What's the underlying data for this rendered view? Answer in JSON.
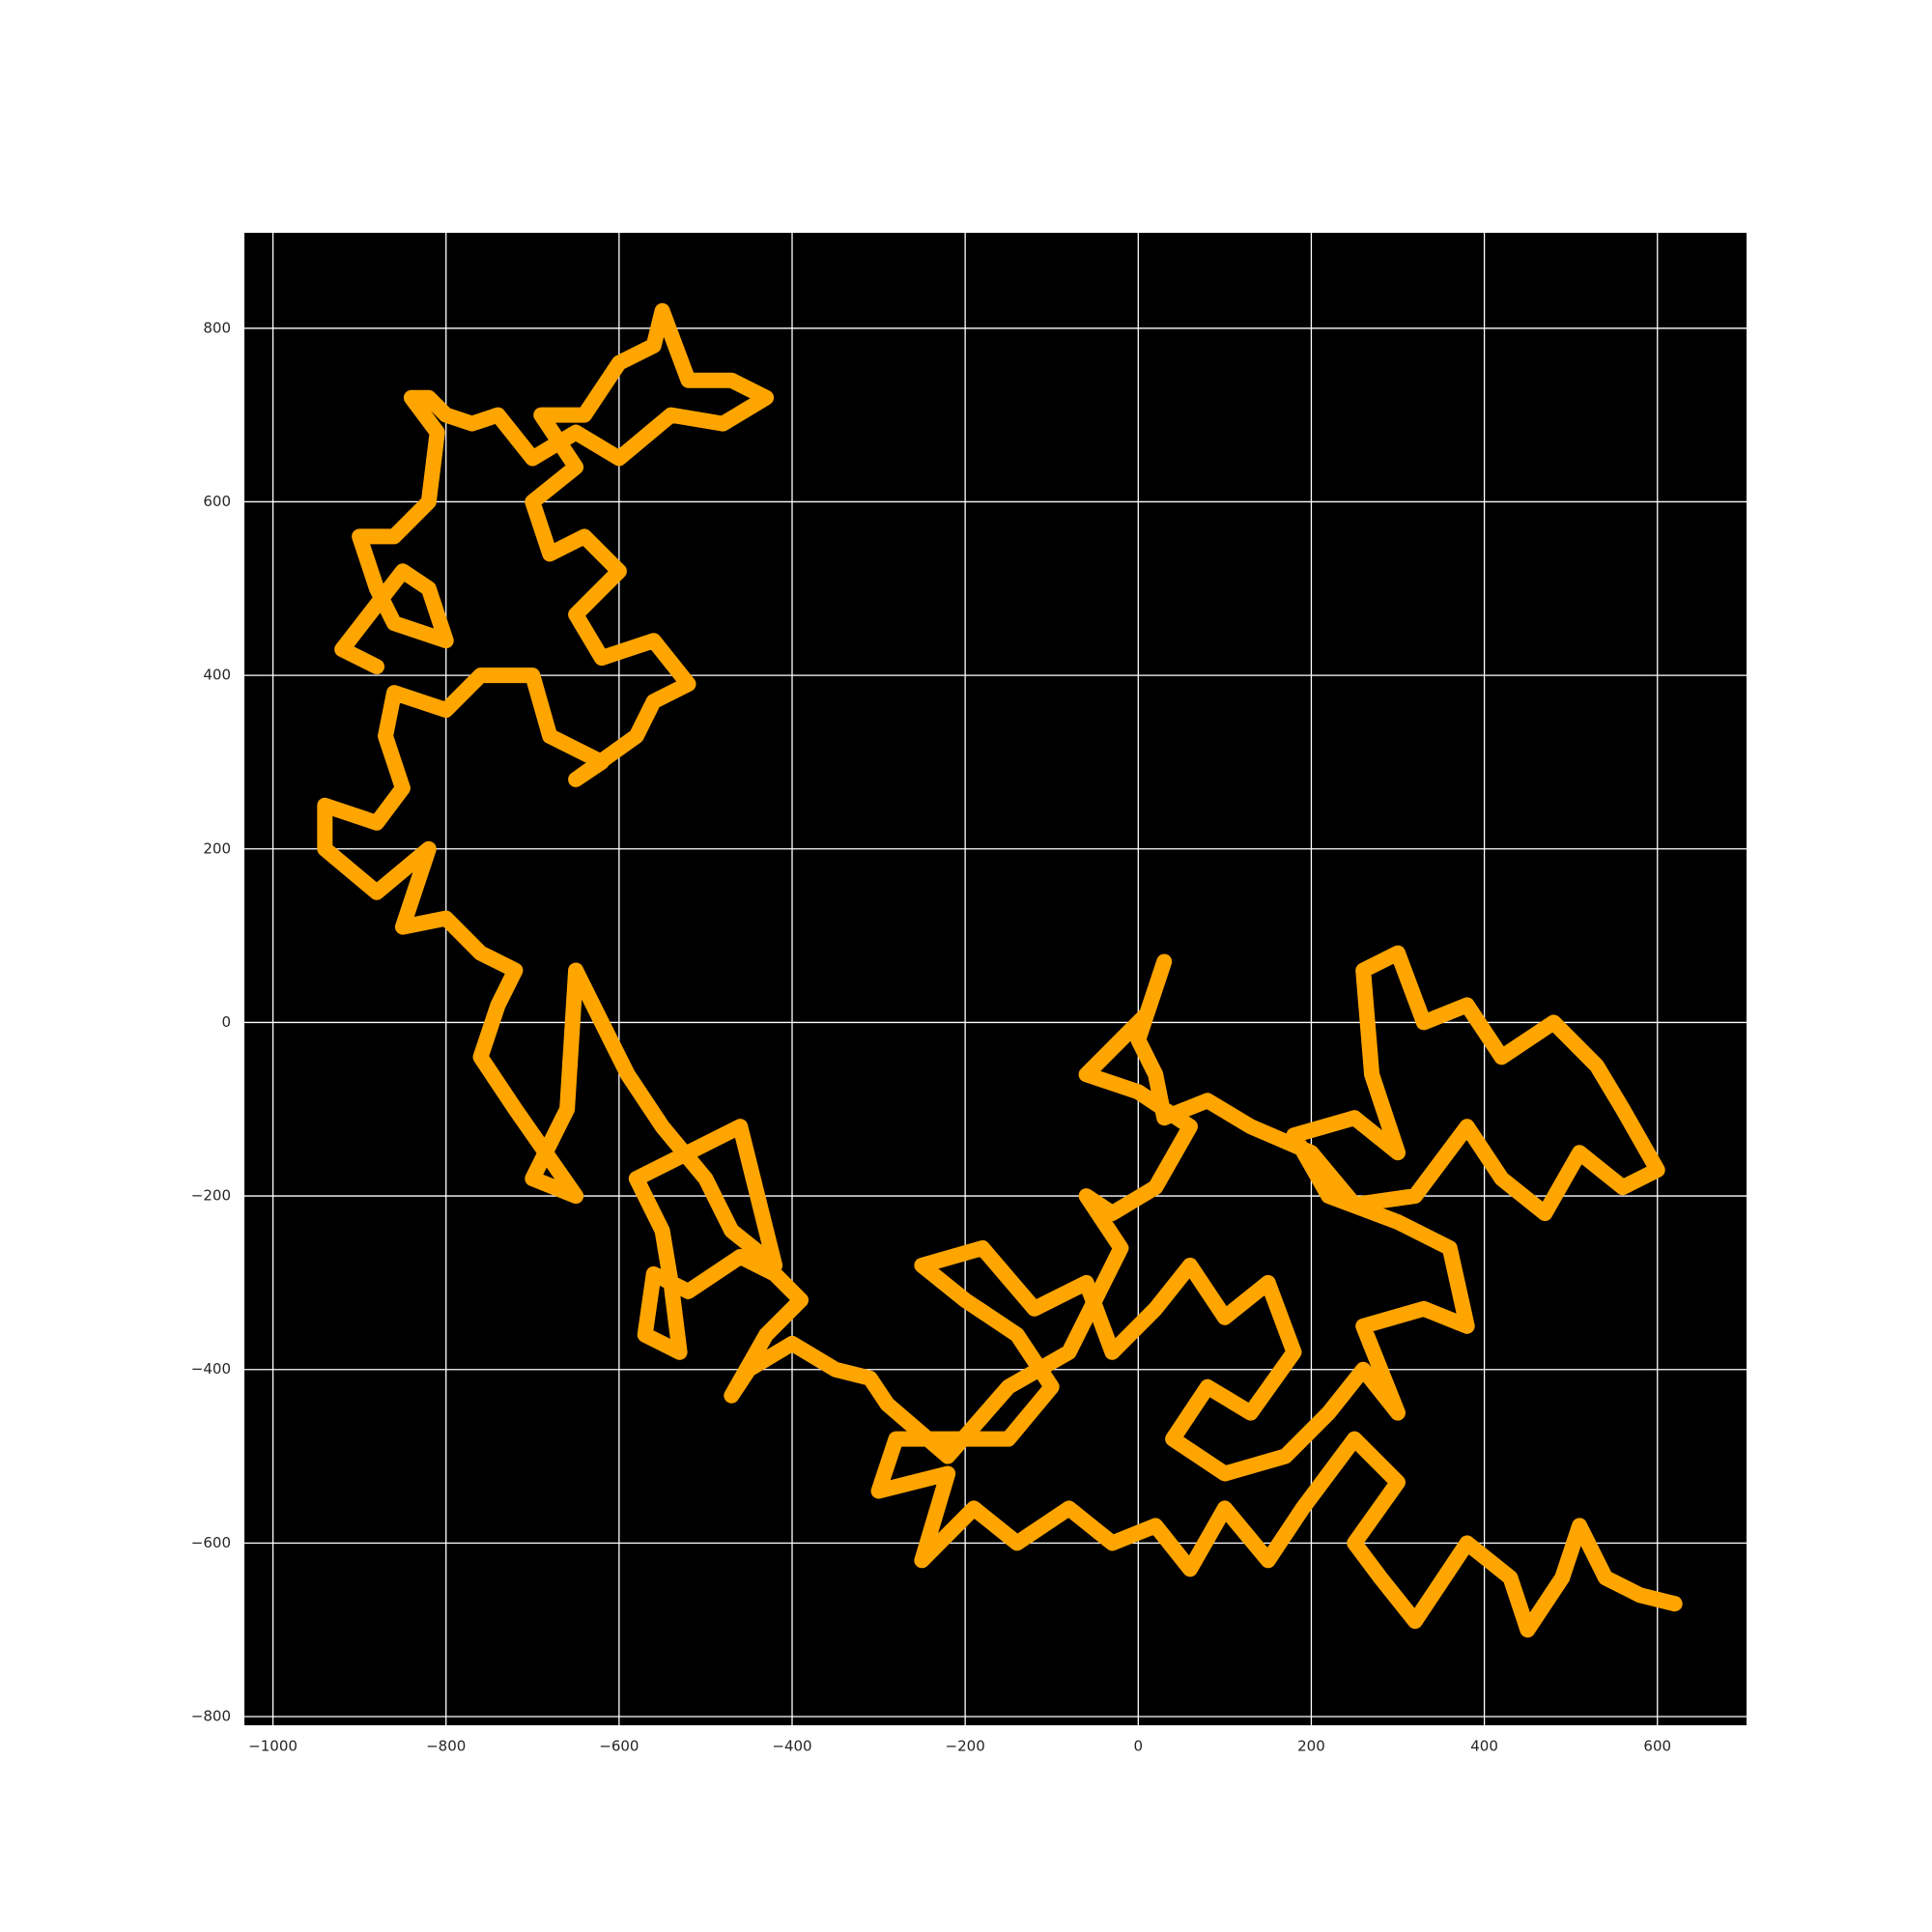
{
  "chart_data": {
    "type": "line",
    "color": "#ffa500",
    "background": "#000000",
    "grid": true,
    "xlim": [
      -1033,
      703
    ],
    "ylim": [
      -810,
      910
    ],
    "xticks": [
      {
        "value": -1000,
        "label": "−1000"
      },
      {
        "value": -800,
        "label": "−800"
      },
      {
        "value": -600,
        "label": "−600"
      },
      {
        "value": -400,
        "label": "−400"
      },
      {
        "value": -200,
        "label": "−200"
      },
      0,
      200,
      400,
      600
    ],
    "yticks": [
      {
        "value": -800,
        "label": "−800"
      },
      {
        "value": -600,
        "label": "−600"
      },
      {
        "value": -400,
        "label": "−400"
      },
      {
        "value": -200,
        "label": "−200"
      },
      0,
      200,
      400,
      600,
      800
    ],
    "x": [
      620,
      580,
      540,
      510,
      490,
      450,
      430,
      380,
      320,
      280,
      250,
      300,
      250,
      190,
      150,
      100,
      60,
      20,
      -30,
      -80,
      -140,
      -190,
      -250,
      -220,
      -300,
      -280,
      -150,
      -100,
      -140,
      -200,
      -250,
      -180,
      -120,
      -60,
      -30,
      20,
      60,
      100,
      150,
      180,
      130,
      80,
      40,
      100,
      170,
      220,
      260,
      300,
      260,
      330,
      380,
      360,
      300,
      220,
      180,
      250,
      300,
      270,
      260,
      300,
      330,
      380,
      420,
      480,
      530,
      560,
      600,
      560,
      510,
      470,
      420,
      380,
      320,
      250,
      200,
      130,
      80,
      30,
      20,
      0,
      20,
      30,
      10,
      -30,
      -60,
      0,
      60,
      20,
      -30,
      -60,
      -20,
      -80,
      -150,
      -220,
      -290,
      -310,
      -350,
      -400,
      -450,
      -470,
      -430,
      -390,
      -420,
      -460,
      -520,
      -560,
      -570,
      -530,
      -540,
      -550,
      -580,
      -520,
      -460,
      -440,
      -420,
      -470,
      -500,
      -550,
      -590,
      -620,
      -650,
      -660,
      -700,
      -650,
      -720,
      -760,
      -740,
      -720,
      -760,
      -800,
      -850,
      -820,
      -880,
      -940,
      -940,
      -880,
      -850,
      -870,
      -860,
      -800,
      -760,
      -700,
      -680,
      -620,
      -650,
      -580,
      -560,
      -520,
      -560,
      -620,
      -650,
      -600,
      -640,
      -680,
      -700,
      -650,
      -690,
      -640,
      -600,
      -560,
      -550,
      -520,
      -470,
      -430,
      -480,
      -540,
      -600,
      -650,
      -700,
      -740,
      -770,
      -800,
      -820,
      -840,
      -810,
      -820,
      -860,
      -900,
      -880,
      -860,
      -800,
      -820,
      -850,
      -920,
      -880
    ],
    "values": [
      -670,
      -660,
      -640,
      -580,
      -640,
      -700,
      -640,
      -600,
      -690,
      -640,
      -600,
      -530,
      -480,
      -560,
      -620,
      -560,
      -630,
      -580,
      -600,
      -560,
      -600,
      -560,
      -620,
      -520,
      -540,
      -480,
      -480,
      -420,
      -360,
      -320,
      -280,
      -260,
      -330,
      -300,
      -380,
      -330,
      -280,
      -340,
      -300,
      -380,
      -450,
      -420,
      -480,
      -520,
      -500,
      -450,
      -400,
      -450,
      -350,
      -330,
      -350,
      -260,
      -230,
      -200,
      -130,
      -110,
      -150,
      -60,
      60,
      80,
      0,
      20,
      -40,
      0,
      -50,
      -100,
      -170,
      -190,
      -150,
      -220,
      -180,
      -120,
      -200,
      -210,
      -150,
      -120,
      -90,
      -110,
      -60,
      -20,
      40,
      70,
      10,
      -30,
      -60,
      -80,
      -120,
      -190,
      -220,
      -200,
      -260,
      -380,
      -420,
      -500,
      -440,
      -410,
      -400,
      -370,
      -400,
      -430,
      -360,
      -320,
      -290,
      -270,
      -310,
      -290,
      -360,
      -380,
      -300,
      -240,
      -180,
      -150,
      -120,
      -200,
      -280,
      -240,
      -180,
      -120,
      -60,
      0,
      60,
      -100,
      -180,
      -200,
      -100,
      -40,
      20,
      60,
      80,
      120,
      110,
      200,
      150,
      200,
      250,
      230,
      270,
      330,
      380,
      360,
      400,
      400,
      330,
      300,
      280,
      330,
      370,
      390,
      440,
      420,
      470,
      520,
      560,
      540,
      600,
      640,
      700,
      700,
      760,
      780,
      820,
      740,
      740,
      720,
      690,
      700,
      650,
      680,
      650,
      700,
      690,
      700,
      720,
      720,
      680,
      600,
      560,
      560,
      500,
      460,
      440,
      500,
      520,
      430,
      410
    ]
  }
}
